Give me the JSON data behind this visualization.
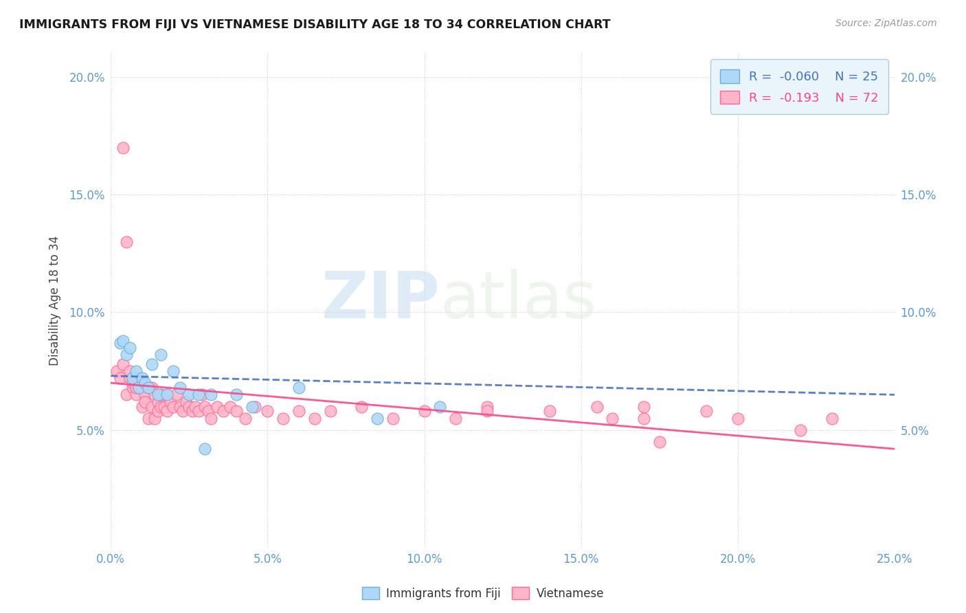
{
  "title": "IMMIGRANTS FROM FIJI VS VIETNAMESE DISABILITY AGE 18 TO 34 CORRELATION CHART",
  "source_text": "Source: ZipAtlas.com",
  "ylabel": "Disability Age 18 to 34",
  "xlim": [
    0.0,
    0.25
  ],
  "ylim": [
    0.0,
    0.21
  ],
  "xticks": [
    0.0,
    0.05,
    0.1,
    0.15,
    0.2,
    0.25
  ],
  "yticks": [
    0.0,
    0.05,
    0.1,
    0.15,
    0.2
  ],
  "xticklabels": [
    "0.0%",
    "5.0%",
    "10.0%",
    "15.0%",
    "20.0%",
    "25.0%"
  ],
  "yticklabels": [
    "",
    "5.0%",
    "10.0%",
    "15.0%",
    "20.0%"
  ],
  "fiji_color": "#ADD8F7",
  "viet_color": "#FFB6C8",
  "fiji_edge_color": "#6BAED6",
  "viet_edge_color": "#FF6699",
  "fiji_line_color": "#4472C4",
  "viet_line_color": "#FF4488",
  "fiji_R": -0.06,
  "fiji_N": 25,
  "viet_R": -0.193,
  "viet_N": 72,
  "fiji_x": [
    0.003,
    0.004,
    0.005,
    0.006,
    0.007,
    0.008,
    0.009,
    0.01,
    0.011,
    0.012,
    0.013,
    0.015,
    0.016,
    0.018,
    0.02,
    0.022,
    0.025,
    0.028,
    0.03,
    0.032,
    0.04,
    0.045,
    0.06,
    0.085,
    0.105
  ],
  "fiji_y": [
    0.087,
    0.088,
    0.082,
    0.085,
    0.072,
    0.075,
    0.068,
    0.072,
    0.07,
    0.068,
    0.078,
    0.065,
    0.082,
    0.065,
    0.075,
    0.068,
    0.065,
    0.065,
    0.042,
    0.065,
    0.065,
    0.06,
    0.068,
    0.055,
    0.06
  ],
  "viet_x": [
    0.002,
    0.003,
    0.004,
    0.004,
    0.005,
    0.005,
    0.006,
    0.006,
    0.007,
    0.007,
    0.008,
    0.008,
    0.009,
    0.009,
    0.01,
    0.01,
    0.011,
    0.011,
    0.012,
    0.012,
    0.013,
    0.013,
    0.014,
    0.014,
    0.015,
    0.015,
    0.016,
    0.016,
    0.017,
    0.018,
    0.018,
    0.019,
    0.02,
    0.021,
    0.022,
    0.023,
    0.024,
    0.025,
    0.026,
    0.027,
    0.028,
    0.029,
    0.03,
    0.031,
    0.032,
    0.034,
    0.036,
    0.038,
    0.04,
    0.043,
    0.046,
    0.05,
    0.055,
    0.06,
    0.065,
    0.07,
    0.08,
    0.09,
    0.1,
    0.11,
    0.12,
    0.14,
    0.155,
    0.17,
    0.19,
    0.2,
    0.22,
    0.23,
    0.17,
    0.12,
    0.16,
    0.175
  ],
  "viet_y": [
    0.075,
    0.072,
    0.078,
    0.17,
    0.065,
    0.13,
    0.072,
    0.075,
    0.068,
    0.07,
    0.065,
    0.068,
    0.072,
    0.068,
    0.068,
    0.06,
    0.065,
    0.062,
    0.068,
    0.055,
    0.068,
    0.06,
    0.065,
    0.055,
    0.062,
    0.058,
    0.065,
    0.06,
    0.06,
    0.065,
    0.058,
    0.062,
    0.06,
    0.065,
    0.06,
    0.058,
    0.062,
    0.06,
    0.058,
    0.06,
    0.058,
    0.065,
    0.06,
    0.058,
    0.055,
    0.06,
    0.058,
    0.06,
    0.058,
    0.055,
    0.06,
    0.058,
    0.055,
    0.058,
    0.055,
    0.058,
    0.06,
    0.055,
    0.058,
    0.055,
    0.06,
    0.058,
    0.06,
    0.055,
    0.058,
    0.055,
    0.05,
    0.055,
    0.06,
    0.058,
    0.055,
    0.045
  ],
  "watermark_zip": "ZIP",
  "watermark_atlas": "atlas",
  "legend_fiji_label": "Immigrants from Fiji",
  "legend_viet_label": "Vietnamese",
  "background_color": "#FFFFFF",
  "grid_color": "#CCCCCC",
  "legend_bg_color": "#EAF4FB",
  "legend_edge_color": "#AACCDD"
}
